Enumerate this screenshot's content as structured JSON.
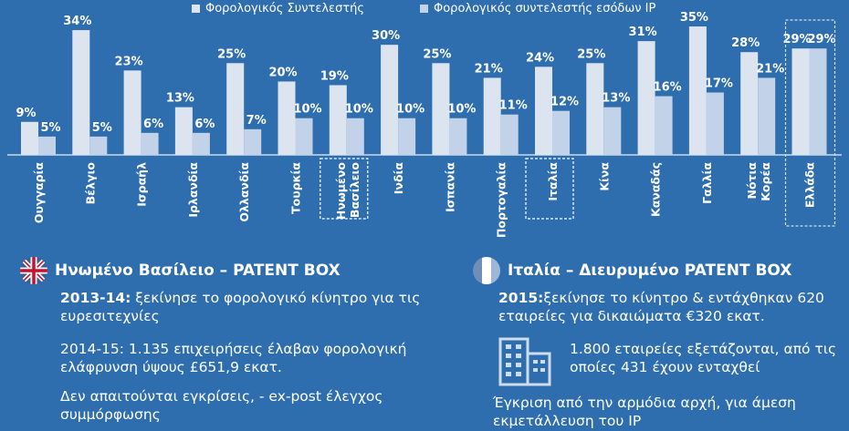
{
  "legend": {
    "series1": "Φορολογικός Συντελεστής",
    "series2": "Φορολογικός συντελεστής εσόδων IP"
  },
  "chart_data": {
    "type": "bar",
    "categories": [
      "Ουγγαρία",
      "Βέλγιο",
      "Ισραήλ",
      "Ιρλανδία",
      "Ολλανδία",
      "Τουρκία",
      "Ηνωμένο Βασίλειο",
      "Ινδία",
      "Ισπανία",
      "Πορτογαλία",
      "Ιταλία",
      "Κίνα",
      "Καναδάς",
      "Γαλλία",
      "Νότια Κορέα",
      "Ελλάδα"
    ],
    "series": [
      {
        "name": "Φορολογικός Συντελεστής",
        "values": [
          9,
          34,
          23,
          13,
          25,
          20,
          19,
          30,
          25,
          21,
          24,
          25,
          31,
          35,
          28,
          29
        ],
        "labels": [
          "9%",
          "34%",
          "23%",
          "13%",
          "25%",
          "20%",
          "19%",
          "30%",
          "25%",
          "21%",
          "24%",
          "25%",
          "31%",
          "35%",
          "28%",
          "29%"
        ],
        "color": "#dce4f0"
      },
      {
        "name": "Φορολογικός συντελεστής εσόδων IP",
        "values": [
          5,
          5,
          6,
          6,
          7,
          10,
          10,
          10,
          10,
          11,
          12,
          13,
          16,
          17,
          21,
          29
        ],
        "labels": [
          "5%",
          "5%",
          "6%",
          "6%",
          "7%",
          "10%",
          "10%",
          "10%",
          "10%",
          "11%",
          "12%",
          "13%",
          "16%",
          "17%",
          "21%",
          "29%"
        ],
        "color": "#c2d2e8"
      }
    ],
    "highlighted": [
      "Ηνωμένο Βασίλειο",
      "Ιταλία",
      "Ελλάδα"
    ],
    "ylim": [
      0,
      36
    ],
    "grid": false
  },
  "uk": {
    "title": "Ηνωμένο Βασίλειο – PATENT BOX",
    "p1_bold": "2013-14:",
    "p1": " ξεκίνησε το φορολογικό κίνητρο για τις ευρεσιτεχνίες",
    "p2": "2014-15: 1.135 επιχειρήσεις έλαβαν φορολογική ελάφρυνση ύψους  £651,9 εκατ.",
    "p3": "Δεν απαιτούνται εγκρίσεις, -  ex-post έλεγχος συμμόρφωσης"
  },
  "italy": {
    "title": "Ιταλία – Διευρυμένο PATENT BOX",
    "p1_bold": "2015:",
    "p1": "ξεκίνησε το κίνητρο & εντάχθηκαν 620 εταιρείες για δικαιώματα €320 εκατ.",
    "p2": "1.800 εταιρείες εξετάζονται, από τις οποίες 431 έχουν ενταχθεί",
    "p3": "Έγκριση από την αρμόδια αρχή, για άμεση εκμετάλλευση του IP"
  },
  "icons": [
    "uk-flag-icon",
    "italy-flag-icon",
    "building-icon"
  ]
}
